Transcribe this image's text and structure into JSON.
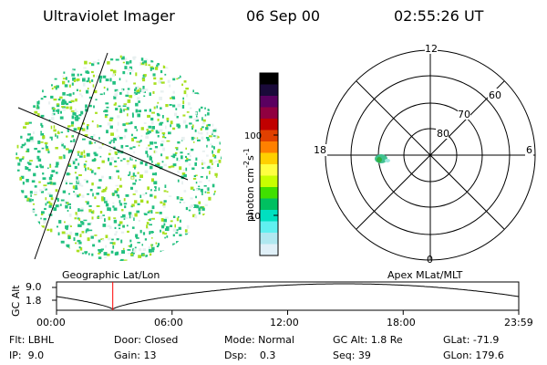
{
  "header": {
    "instrument": "Ultraviolet Imager",
    "date": "06 Sep 00",
    "time": "02:55:26 UT"
  },
  "geographic_panel": {
    "caption": "Geographic Lat/Lon"
  },
  "apex_panel": {
    "caption": "Apex MLat/MLT",
    "mlt_labels": {
      "top": "12",
      "left": "18",
      "right": "6",
      "bottom": "0"
    },
    "mlat_labels": [
      "80",
      "70",
      "60"
    ]
  },
  "colorbar": {
    "unit_label": "photon cm",
    "unit_sup1": "-2",
    "unit_mid": "s",
    "unit_sup2": "-1",
    "ticks": [
      "100",
      "10"
    ],
    "colors": [
      "#000000",
      "#1a0a3a",
      "#5a0060",
      "#900040",
      "#c00000",
      "#e04000",
      "#ff8000",
      "#ffd000",
      "#ffff40",
      "#c8ff00",
      "#40e000",
      "#00c060",
      "#00e0c0",
      "#60f0f0",
      "#b0e8f0",
      "#e0f0f8"
    ]
  },
  "altitude_plot": {
    "ylabel": "GC Alt",
    "yticks": [
      "9.0",
      "1.8"
    ],
    "xticks": [
      "00:00",
      "06:00",
      "12:00",
      "18:00",
      "23:59"
    ],
    "current_time_hours": 2.92
  },
  "info": {
    "flt": "Flt: LBHL",
    "ip": "IP:  9.0",
    "door": "Door: Closed",
    "gain": "Gain: 13",
    "mode": "Mode: Normal",
    "dsp": "Dsp:    0.3",
    "gcalt": "GC Alt: 1.8 Re",
    "seq": "Seq: 39",
    "glat": "GLat: -71.9",
    "glon": "GLon: 179.6"
  },
  "colors": {
    "marker": "#ff0000",
    "speckle_a": "#22c080",
    "speckle_b": "#a8e020",
    "speckle_c": "#e8f0f0"
  }
}
